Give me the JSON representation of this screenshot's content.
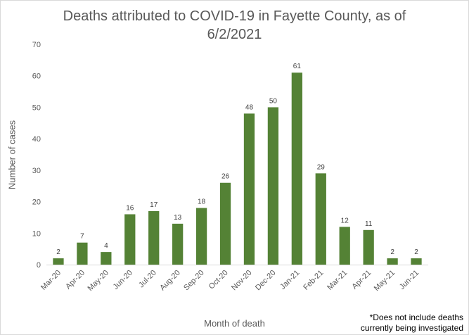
{
  "chart_data": {
    "type": "bar",
    "title_lines": [
      "Deaths attributed to COVID-19 in Fayette County, as of",
      "6/2/2021"
    ],
    "xlabel": "Month of death",
    "ylabel": "Number of cases",
    "categories": [
      "Mar-20",
      "Apr-20",
      "May-20",
      "Jun-20",
      "Jul-20",
      "Aug-20",
      "Sep-20",
      "Oct-20",
      "Nov-20",
      "Dec-20",
      "Jan-21",
      "Feb-21",
      "Mar-21",
      "Apr-21",
      "May-21",
      "Jun-21"
    ],
    "values": [
      2,
      7,
      4,
      16,
      17,
      13,
      18,
      26,
      48,
      50,
      61,
      29,
      12,
      11,
      2,
      2
    ],
    "ylim": [
      0,
      70
    ],
    "yticks": [
      0,
      10,
      20,
      30,
      40,
      50,
      60,
      70
    ],
    "grid": false,
    "legend": "none",
    "bar_color": "#548235",
    "data_labels": true
  },
  "footnote_lines": [
    "*Does not include deaths",
    "currently being investigated"
  ]
}
